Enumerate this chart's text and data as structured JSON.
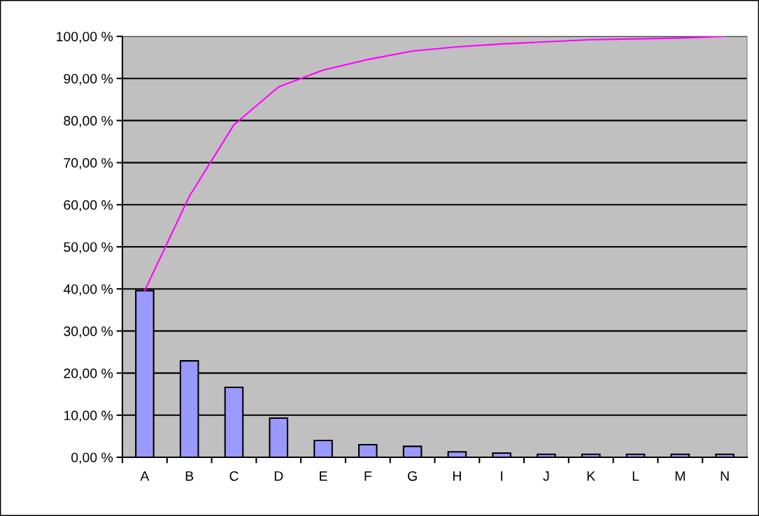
{
  "chart_data": {
    "type": "bar",
    "categories": [
      "A",
      "B",
      "C",
      "D",
      "E",
      "F",
      "G",
      "H",
      "I",
      "J",
      "K",
      "L",
      "M",
      "N"
    ],
    "series": [
      {
        "color": "#9999ff",
        "values": [
          39.6,
          22.9,
          16.6,
          9.3,
          4.0,
          3.0,
          2.6,
          1.3,
          1.0,
          0.7,
          0.7,
          0.7,
          0.7,
          0.7
        ]
      },
      {
        "type": "line",
        "color": "#ff00ff",
        "values": [
          39.6,
          62.0,
          79.0,
          88.0,
          92.0,
          94.5,
          96.5,
          97.5,
          98.2,
          98.7,
          99.2,
          99.4,
          99.6,
          100.0
        ]
      }
    ],
    "ylim": [
      0,
      100
    ],
    "yticks": [
      {
        "value": 0,
        "label": "0,00 %"
      },
      {
        "value": 10,
        "label": "10,00 %"
      },
      {
        "value": 20,
        "label": "20,00 %"
      },
      {
        "value": 30,
        "label": "30,00 %"
      },
      {
        "value": 40,
        "label": "40,00 %"
      },
      {
        "value": 50,
        "label": "50,00 %"
      },
      {
        "value": 60,
        "label": "60,00 %"
      },
      {
        "value": 70,
        "label": "70,00 %"
      },
      {
        "value": 80,
        "label": "80,00 %"
      },
      {
        "value": 90,
        "label": "90,00 %"
      },
      {
        "value": 100,
        "label": "100,00 %"
      }
    ],
    "grid": "y",
    "marker": "none",
    "line_style": "solid"
  }
}
